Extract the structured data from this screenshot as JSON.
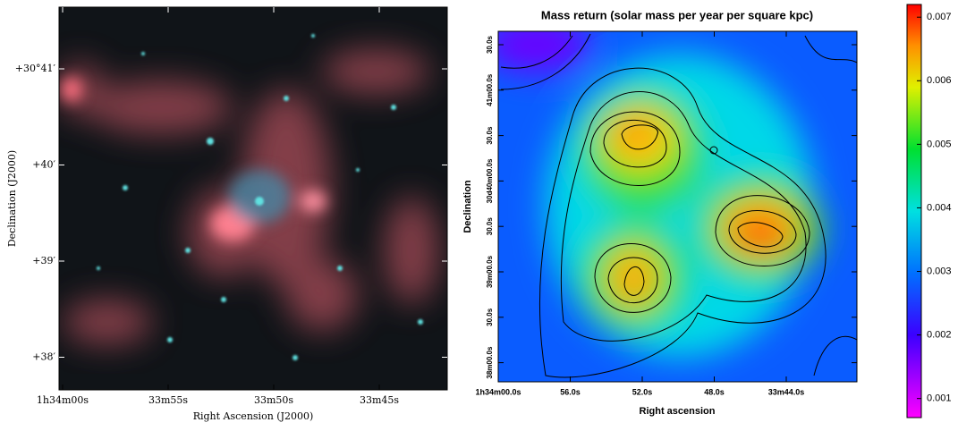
{
  "chart_data": [
    {
      "type": "image",
      "xlabel": "Right Ascension (J2000)",
      "ylabel": "Declination (J2000)",
      "xticklabels": [
        "1h34m00s",
        "33m55s",
        "33m50s",
        "33m45s"
      ],
      "yticklabels": [
        "+30°41′",
        "+40′",
        "+39′",
        "+38′"
      ]
    },
    {
      "type": "contour",
      "title": "Mass return     (solar mass per year per square kpc)",
      "xlabel": "Right ascension",
      "ylabel": "Declination",
      "xticklabels": [
        "1h34m00.0s",
        "56.0s",
        "52.0s",
        "48.0s",
        "33m44.0s"
      ],
      "yticklabels": [
        "30.0s",
        "41m00.0s",
        "30.0s",
        "30d40m00.0s",
        "30.0s",
        "39m00.0s",
        "30.0s",
        "38m00.0s"
      ],
      "colorbar_lim": [
        0.0007,
        0.0072
      ],
      "colorbar_ticks": [
        0.001,
        0.002,
        0.003,
        0.004,
        0.005,
        0.006,
        0.007
      ]
    }
  ]
}
